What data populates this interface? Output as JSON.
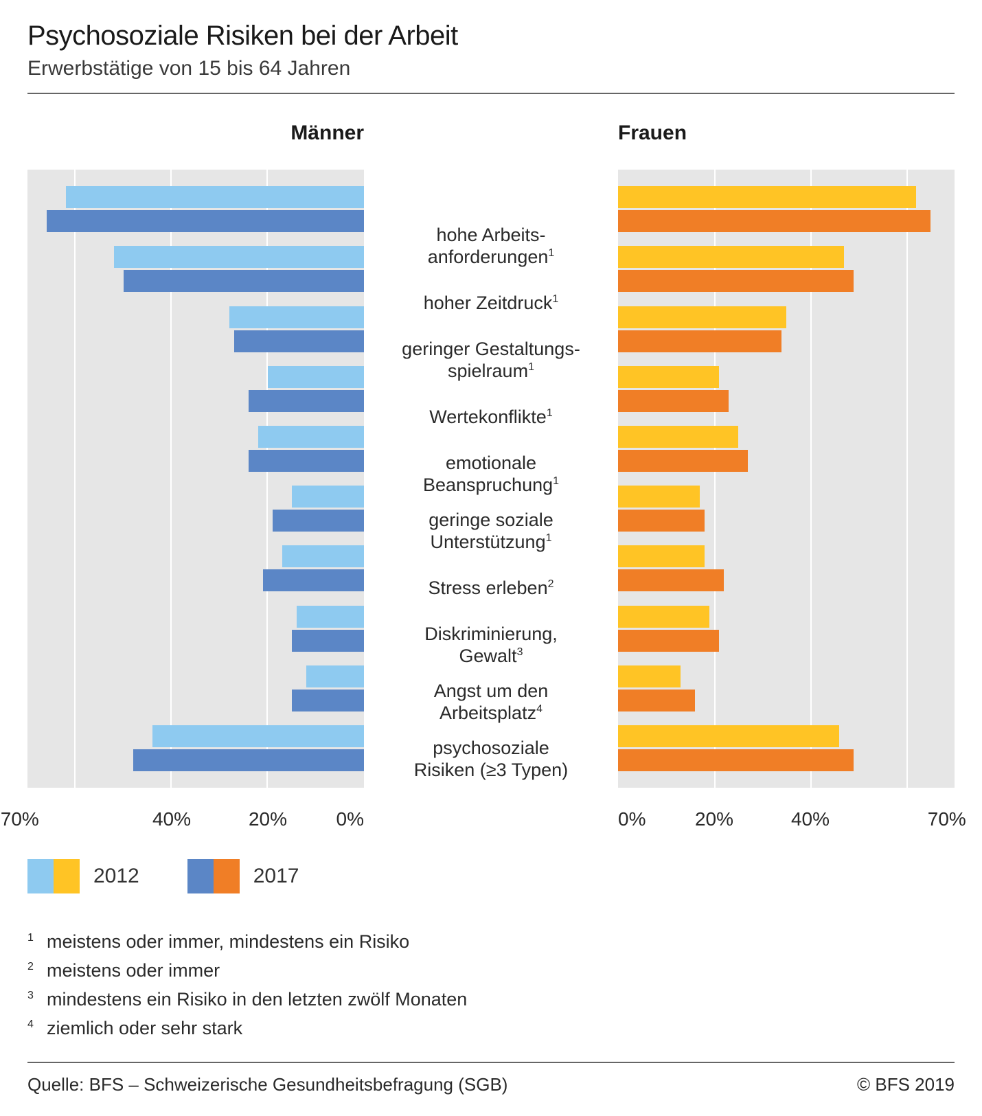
{
  "title": "Psychosoziale Risiken bei der Arbeit",
  "subtitle": "Erwerbstätige von 15 bis 64 Jahren",
  "panel_left_header": "Männer",
  "panel_right_header": "Frauen",
  "colors": {
    "men_2012": "#8ecaf0",
    "men_2017": "#5b86c6",
    "women_2012": "#ffc425",
    "women_2017": "#f07e26",
    "panel_bg": "#e6e6e6",
    "grid": "#ffffff"
  },
  "axis": {
    "max": 70,
    "ticks_left": [
      "70%",
      "40%",
      "20%",
      "0%"
    ],
    "ticks_right": [
      "0%",
      "20%",
      "40%",
      "70%"
    ],
    "tick_positions": [
      0,
      20,
      40,
      70
    ],
    "gridlines": [
      20,
      40,
      60
    ]
  },
  "categories": [
    {
      "label_lines": [
        "hohe Arbeits-",
        "anforderungen"
      ],
      "sup": "1",
      "men": {
        "v2012": 62,
        "v2017": 66
      },
      "women": {
        "v2012": 62,
        "v2017": 65
      }
    },
    {
      "label_lines": [
        "hoher Zeitdruck"
      ],
      "sup": "1",
      "men": {
        "v2012": 52,
        "v2017": 50
      },
      "women": {
        "v2012": 47,
        "v2017": 49
      }
    },
    {
      "label_lines": [
        "geringer Gestaltungs-",
        "spielraum"
      ],
      "sup": "1",
      "men": {
        "v2012": 28,
        "v2017": 27
      },
      "women": {
        "v2012": 35,
        "v2017": 34
      }
    },
    {
      "label_lines": [
        "Wertekonflikte"
      ],
      "sup": "1",
      "men": {
        "v2012": 20,
        "v2017": 24
      },
      "women": {
        "v2012": 21,
        "v2017": 23
      }
    },
    {
      "label_lines": [
        "emotionale",
        "Beanspruchung"
      ],
      "sup": "1",
      "men": {
        "v2012": 22,
        "v2017": 24
      },
      "women": {
        "v2012": 25,
        "v2017": 27
      }
    },
    {
      "label_lines": [
        "geringe soziale",
        "Unterstützung"
      ],
      "sup": "1",
      "men": {
        "v2012": 15,
        "v2017": 19
      },
      "women": {
        "v2012": 17,
        "v2017": 18
      }
    },
    {
      "label_lines": [
        "Stress erleben"
      ],
      "sup": "2",
      "men": {
        "v2012": 17,
        "v2017": 21
      },
      "women": {
        "v2012": 18,
        "v2017": 22
      }
    },
    {
      "label_lines": [
        "Diskriminierung,",
        "Gewalt"
      ],
      "sup": "3",
      "men": {
        "v2012": 14,
        "v2017": 15
      },
      "women": {
        "v2012": 19,
        "v2017": 21
      }
    },
    {
      "label_lines": [
        "Angst um den",
        "Arbeitsplatz"
      ],
      "sup": "4",
      "men": {
        "v2012": 12,
        "v2017": 15
      },
      "women": {
        "v2012": 13,
        "v2017": 16
      }
    },
    {
      "label_lines": [
        "psychosoziale",
        "Risiken (≥3 Typen)"
      ],
      "sup": "",
      "men": {
        "v2012": 44,
        "v2017": 48
      },
      "women": {
        "v2012": 46,
        "v2017": 49
      }
    }
  ],
  "legend": {
    "y2012": "2012",
    "y2017": "2017"
  },
  "footnotes": [
    {
      "sup": "1",
      "text": "meistens oder immer, mindestens ein Risiko"
    },
    {
      "sup": "2",
      "text": "meistens oder immer"
    },
    {
      "sup": "3",
      "text": "mindestens ein Risiko in den letzten zwölf Monaten"
    },
    {
      "sup": "4",
      "text": "ziemlich oder sehr stark"
    }
  ],
  "source": "Quelle: BFS – Schweizerische Gesundheitsbefragung (SGB)",
  "copyright": "© BFS 2019"
}
